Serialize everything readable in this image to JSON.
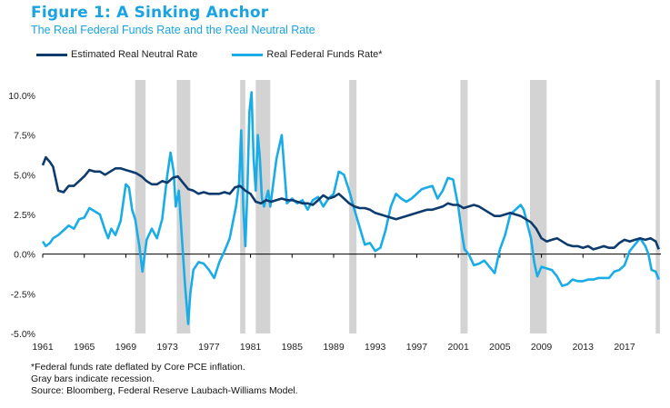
{
  "header": {
    "title": "Figure 1: A Sinking Anchor",
    "subtitle": "The Real Federal Funds Rate and the Real Neutral Rate"
  },
  "notes": [
    "*Federal funds rate deflated by Core PCE inflation.",
    "Gray bars indicate recession.",
    "Source: Bloomberg, Federal Reserve Laubach-Williams Model."
  ],
  "colors": {
    "neutral": "#0d3b6e",
    "funds": "#1aace6",
    "recession": "#d3d3d3"
  },
  "chart_data": {
    "type": "line",
    "title": "Figure 1: A Sinking Anchor",
    "subtitle": "The Real Federal Funds Rate and the Real Neutral Rate",
    "xlabel": "",
    "ylabel": "",
    "xlim": [
      1961,
      2020.5
    ],
    "ylim": [
      -5,
      10
    ],
    "x_ticks": [
      "1961",
      "1965",
      "1969",
      "1973",
      "1977",
      "1981",
      "1985",
      "1989",
      "1993",
      "1997",
      "2001",
      "2005",
      "2009",
      "2013",
      "2017"
    ],
    "y_ticks": [
      "10.0%",
      "7.5%",
      "5.0%",
      "2.5%",
      "0.0%",
      "-2.5%",
      "-5.0%"
    ],
    "y_tick_values": [
      10,
      7.5,
      5,
      2.5,
      0,
      -2.5,
      -5
    ],
    "legend_position": "top-left",
    "recessions": [
      [
        1969.9,
        1970.9
      ],
      [
        1973.9,
        1975.2
      ],
      [
        1980.0,
        1980.5
      ],
      [
        1981.5,
        1982.9
      ],
      [
        1990.5,
        1991.2
      ],
      [
        2001.2,
        2001.9
      ],
      [
        2007.9,
        2009.5
      ],
      [
        2020.0,
        2020.4
      ]
    ],
    "series": [
      {
        "name": "Estimated Real Neutral Rate",
        "x": [
          1961,
          1961.3,
          1961.7,
          1962,
          1962.5,
          1963,
          1963.5,
          1964,
          1964.5,
          1965,
          1965.5,
          1966,
          1966.5,
          1967,
          1967.5,
          1968,
          1968.5,
          1969,
          1969.5,
          1970,
          1970.5,
          1971,
          1971.5,
          1972,
          1972.5,
          1973,
          1973.5,
          1974,
          1974.5,
          1975,
          1975.5,
          1976,
          1976.5,
          1977,
          1977.5,
          1978,
          1978.5,
          1979,
          1979.5,
          1980,
          1980.5,
          1981,
          1981.5,
          1982,
          1982.5,
          1983,
          1983.5,
          1984,
          1984.5,
          1985,
          1985.5,
          1986,
          1986.5,
          1987,
          1987.5,
          1988,
          1988.5,
          1989,
          1989.5,
          1990,
          1990.5,
          1991,
          1991.5,
          1992,
          1992.5,
          1993,
          1993.5,
          1994,
          1994.5,
          1995,
          1995.5,
          1996,
          1996.5,
          1997,
          1997.5,
          1998,
          1998.5,
          1999,
          1999.5,
          2000,
          2000.5,
          2001,
          2001.5,
          2002,
          2002.5,
          2003,
          2003.5,
          2004,
          2004.5,
          2005,
          2005.5,
          2006,
          2006.5,
          2007,
          2007.5,
          2008,
          2008.5,
          2009,
          2009.5,
          2010,
          2010.5,
          2011,
          2011.5,
          2012,
          2012.5,
          2013,
          2013.5,
          2014,
          2014.5,
          2015,
          2015.5,
          2016,
          2016.5,
          2017,
          2017.5,
          2018,
          2018.5,
          2019,
          2019.5,
          2020,
          2020.3
        ],
        "values": [
          5.6,
          6.1,
          5.8,
          5.5,
          4.0,
          3.9,
          4.3,
          4.3,
          4.6,
          4.9,
          5.3,
          5.2,
          5.2,
          5.0,
          5.2,
          5.4,
          5.4,
          5.3,
          5.2,
          5.1,
          4.9,
          4.6,
          4.4,
          4.4,
          4.6,
          4.5,
          4.8,
          4.9,
          4.5,
          4.1,
          4.0,
          3.8,
          3.9,
          3.8,
          3.8,
          3.8,
          3.9,
          3.8,
          4.2,
          4.3,
          4.0,
          3.8,
          3.3,
          3.2,
          3.4,
          3.3,
          3.4,
          3.5,
          3.4,
          3.4,
          3.3,
          3.2,
          3.2,
          3.1,
          3.4,
          3.7,
          3.5,
          3.6,
          3.8,
          3.5,
          3.2,
          3.0,
          2.9,
          2.9,
          2.8,
          2.6,
          2.5,
          2.4,
          2.3,
          2.2,
          2.3,
          2.4,
          2.5,
          2.6,
          2.7,
          2.8,
          2.8,
          2.9,
          3.0,
          3.2,
          3.1,
          3.1,
          2.9,
          3.0,
          3.1,
          3.0,
          2.8,
          2.6,
          2.4,
          2.4,
          2.5,
          2.6,
          2.5,
          2.4,
          2.2,
          2.0,
          1.6,
          1.0,
          0.8,
          0.9,
          1.0,
          0.8,
          0.6,
          0.5,
          0.5,
          0.4,
          0.5,
          0.3,
          0.4,
          0.5,
          0.4,
          0.4,
          0.7,
          0.9,
          0.8,
          0.9,
          1.0,
          0.9,
          1.0,
          0.8,
          0.3
        ],
        "color": "#0d3b6e"
      },
      {
        "name": "Real Federal Funds Rate*",
        "x": [
          1961,
          1961.3,
          1961.7,
          1962,
          1962.5,
          1963,
          1963.5,
          1964,
          1964.5,
          1965,
          1965.5,
          1966,
          1966.5,
          1967,
          1967.3,
          1967.6,
          1968,
          1968.5,
          1969,
          1969.3,
          1969.6,
          1969.9,
          1970.3,
          1970.6,
          1971,
          1971.5,
          1972,
          1972.5,
          1973,
          1973.3,
          1973.6,
          1973.8,
          1974.1,
          1974.4,
          1974.7,
          1975,
          1975.2,
          1975.5,
          1976,
          1976.5,
          1977,
          1977.5,
          1978,
          1978.5,
          1979,
          1979.3,
          1979.6,
          1979.9,
          1980.1,
          1980.3,
          1980.5,
          1980.7,
          1980.9,
          1981.1,
          1981.3,
          1981.5,
          1981.7,
          1981.9,
          1982.1,
          1982.3,
          1982.5,
          1982.7,
          1982.9,
          1983.2,
          1983.5,
          1984,
          1984.5,
          1985,
          1985.5,
          1986,
          1986.5,
          1987,
          1987.5,
          1988,
          1988.5,
          1989,
          1989.5,
          1990,
          1990.5,
          1991,
          1991.5,
          1992,
          1992.5,
          1993,
          1993.5,
          1994,
          1994.5,
          1995,
          1995.5,
          1996,
          1996.5,
          1997,
          1997.5,
          1998,
          1998.5,
          1999,
          1999.5,
          2000,
          2000.5,
          2001,
          2001.3,
          2001.6,
          2002,
          2002.5,
          2003,
          2003.5,
          2004,
          2004.5,
          2005,
          2005.5,
          2006,
          2006.5,
          2007,
          2007.3,
          2007.6,
          2008,
          2008.3,
          2008.6,
          2009,
          2009.5,
          2010,
          2010.5,
          2011,
          2011.5,
          2012,
          2012.5,
          2013,
          2013.5,
          2014,
          2014.5,
          2015,
          2015.5,
          2016,
          2016.5,
          2017,
          2017.5,
          2018,
          2018.5,
          2019,
          2019.3,
          2019.6,
          2020,
          2020.3
        ],
        "values": [
          0.8,
          0.5,
          0.7,
          1.0,
          1.2,
          1.5,
          1.8,
          1.6,
          2.2,
          2.3,
          2.9,
          2.7,
          2.5,
          1.5,
          1.0,
          1.6,
          1.2,
          2.1,
          4.4,
          4.2,
          2.8,
          2.2,
          0.5,
          -1.1,
          0.9,
          1.6,
          1.0,
          2.2,
          5.0,
          6.4,
          5.2,
          3.0,
          4.0,
          1.0,
          -2.0,
          -4.4,
          -2.5,
          -1.0,
          -0.5,
          -0.6,
          -1.0,
          -1.5,
          -0.5,
          0.2,
          1.0,
          2.0,
          3.0,
          4.5,
          7.8,
          3.0,
          0.5,
          4.0,
          9.0,
          10.2,
          6.0,
          4.0,
          7.5,
          6.0,
          3.5,
          3.0,
          3.5,
          4.0,
          3.0,
          4.5,
          6.0,
          7.5,
          3.2,
          3.5,
          3.2,
          3.4,
          2.8,
          3.4,
          3.6,
          3.0,
          3.5,
          3.8,
          5.2,
          5.0,
          4.0,
          2.8,
          1.7,
          0.6,
          0.7,
          0.2,
          0.4,
          1.5,
          3.0,
          3.8,
          3.5,
          3.3,
          3.5,
          3.8,
          4.1,
          4.2,
          4.3,
          3.5,
          4.0,
          4.8,
          4.7,
          3.0,
          1.5,
          0.3,
          0.0,
          -0.7,
          -0.6,
          -0.4,
          -0.8,
          -1.2,
          0.3,
          1.2,
          2.5,
          2.8,
          3.1,
          2.8,
          2.0,
          1.0,
          -0.5,
          -1.4,
          -0.8,
          -0.9,
          -1.0,
          -1.4,
          -2.0,
          -1.9,
          -1.6,
          -1.7,
          -1.7,
          -1.6,
          -1.6,
          -1.5,
          -1.5,
          -1.5,
          -1.1,
          -1.0,
          -0.7,
          0.2,
          0.6,
          1.0,
          0.5,
          0.0,
          -1.0,
          -1.1,
          -1.6
        ],
        "color": "#1aace6"
      }
    ]
  }
}
